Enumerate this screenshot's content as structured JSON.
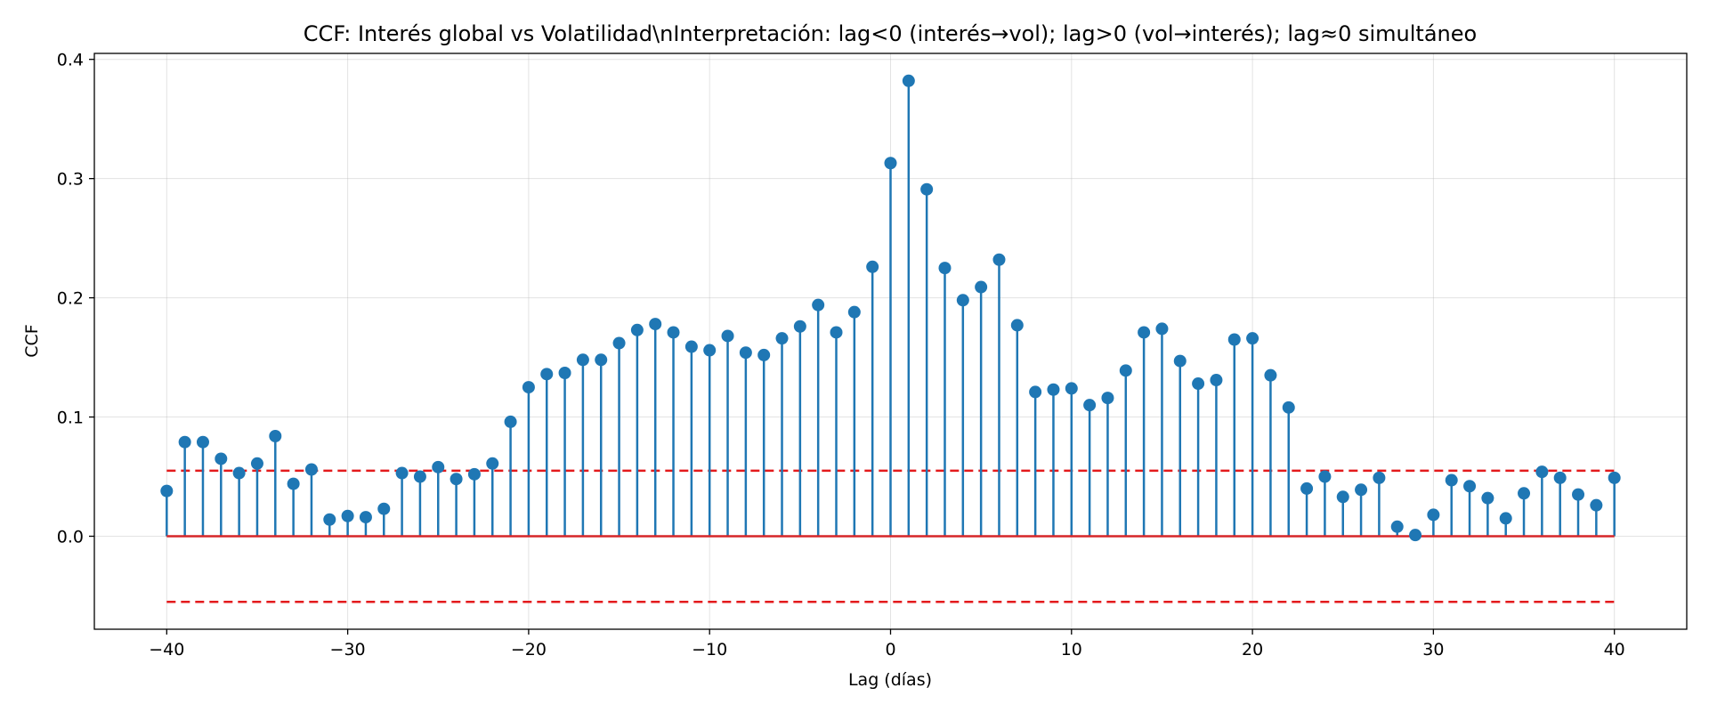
{
  "chart_data": {
    "type": "stem",
    "title": "CCF: Interés global vs Volatilidad\\nInterpretación: lag<0 (interés→vol); lag>0 (vol→interés); lag≈0 simultáneo",
    "xlabel": "Lag (días)",
    "ylabel": "CCF",
    "xlim": [
      -44,
      44
    ],
    "ylim": [
      -0.078,
      0.405
    ],
    "xticks": [
      -40,
      -30,
      -20,
      -10,
      0,
      10,
      20,
      30,
      40
    ],
    "xtick_labels": [
      "−40",
      "−30",
      "−20",
      "−10",
      "0",
      "10",
      "20",
      "30",
      "40"
    ],
    "yticks": [
      0.0,
      0.1,
      0.2,
      0.3,
      0.4
    ],
    "ytick_labels": [
      "0.0",
      "0.1",
      "0.2",
      "0.3",
      "0.4"
    ],
    "grid": true,
    "confidence_band": [
      -0.055,
      0.055
    ],
    "baseline": 0,
    "colors": {
      "stem": "#1f77b4",
      "baseline": "#d62728",
      "band": "#e31a1c"
    },
    "x": [
      -40,
      -39,
      -38,
      -37,
      -36,
      -35,
      -34,
      -33,
      -32,
      -31,
      -30,
      -29,
      -28,
      -27,
      -26,
      -25,
      -24,
      -23,
      -22,
      -21,
      -20,
      -19,
      -18,
      -17,
      -16,
      -15,
      -14,
      -13,
      -12,
      -11,
      -10,
      -9,
      -8,
      -7,
      -6,
      -5,
      -4,
      -3,
      -2,
      -1,
      0,
      1,
      2,
      3,
      4,
      5,
      6,
      7,
      8,
      9,
      10,
      11,
      12,
      13,
      14,
      15,
      16,
      17,
      18,
      19,
      20,
      21,
      22,
      23,
      24,
      25,
      26,
      27,
      28,
      29,
      30,
      31,
      32,
      33,
      34,
      35,
      36,
      37,
      38,
      39,
      40
    ],
    "values": [
      0.038,
      0.079,
      0.079,
      0.065,
      0.053,
      0.061,
      0.084,
      0.044,
      0.056,
      0.014,
      0.017,
      0.016,
      0.023,
      0.053,
      0.05,
      0.058,
      0.048,
      0.052,
      0.061,
      0.096,
      0.125,
      0.136,
      0.137,
      0.148,
      0.148,
      0.162,
      0.173,
      0.178,
      0.171,
      0.159,
      0.156,
      0.168,
      0.154,
      0.152,
      0.166,
      0.176,
      0.194,
      0.171,
      0.188,
      0.226,
      0.313,
      0.382,
      0.291,
      0.225,
      0.198,
      0.209,
      0.232,
      0.177,
      0.121,
      0.123,
      0.124,
      0.11,
      0.116,
      0.139,
      0.171,
      0.174,
      0.147,
      0.128,
      0.131,
      0.165,
      0.166,
      0.135,
      0.108,
      0.04,
      0.05,
      0.033,
      0.039,
      0.049,
      0.008,
      0.001,
      0.018,
      0.047,
      0.042,
      0.032,
      0.015,
      0.036,
      0.054,
      0.049,
      0.035,
      0.026,
      0.049
    ]
  }
}
